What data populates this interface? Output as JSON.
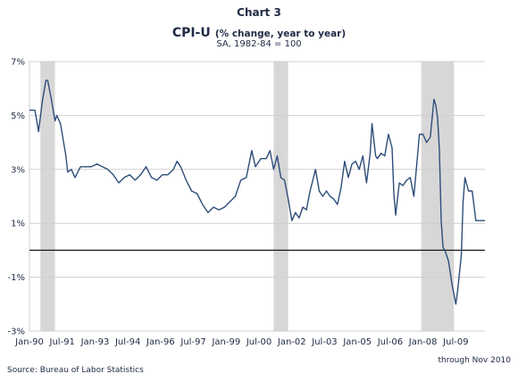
{
  "header": {
    "chart_number": "Chart 3",
    "title_main": "CPI-U",
    "title_sub": "(% change, year to year)",
    "subtitle": "SA, 1982-84 = 100"
  },
  "footer": {
    "source": "Source: Bureau of Labor Statistics",
    "through": "through Nov 2010"
  },
  "colors": {
    "line": "#2e4d7a",
    "shade": "#d7d7d7",
    "grid": "#cfcfcf",
    "zero": "#1a1a1a"
  },
  "chart_data": {
    "type": "line",
    "xlabel": "",
    "ylabel": "",
    "x_start": "Jan-90",
    "x_end": "Nov-10",
    "x_ticks": [
      {
        "label": "Jan-90",
        "month_index": 0
      },
      {
        "label": "Jul-91",
        "month_index": 18
      },
      {
        "label": "Jan-93",
        "month_index": 36
      },
      {
        "label": "Jul-94",
        "month_index": 54
      },
      {
        "label": "Jan-96",
        "month_index": 72
      },
      {
        "label": "Jul-97",
        "month_index": 90
      },
      {
        "label": "Jan-99",
        "month_index": 108
      },
      {
        "label": "Jul-00",
        "month_index": 126
      },
      {
        "label": "Jan-02",
        "month_index": 144
      },
      {
        "label": "Jul-03",
        "month_index": 162
      },
      {
        "label": "Jan-05",
        "month_index": 180
      },
      {
        "label": "Jul-06",
        "month_index": 198
      },
      {
        "label": "Jan-08",
        "month_index": 216
      },
      {
        "label": "Jul-09",
        "month_index": 234
      }
    ],
    "ylim": [
      -3,
      7
    ],
    "y_ticks": [
      {
        "label": "7%",
        "value": 7
      },
      {
        "label": "5%",
        "value": 5
      },
      {
        "label": "3%",
        "value": 3
      },
      {
        "label": "1%",
        "value": 1
      },
      {
        "label": "-1%",
        "value": -1
      },
      {
        "label": "-3%",
        "value": -3
      }
    ],
    "grid": "horizontal",
    "recession_shading": [
      {
        "start": "Jul-90",
        "end": "Mar-91"
      },
      {
        "start": "Mar-01",
        "end": "Nov-01"
      },
      {
        "start": "Dec-07",
        "end": "Jun-09"
      }
    ],
    "series": [
      {
        "points": [
          [
            "Jan-90",
            5.2
          ],
          [
            "Apr-90",
            5.2
          ],
          [
            "Jun-90",
            4.4
          ],
          [
            "Aug-90",
            5.5
          ],
          [
            "Oct-90",
            6.3
          ],
          [
            "Nov-90",
            6.3
          ],
          [
            "Jan-91",
            5.6
          ],
          [
            "Mar-91",
            4.8
          ],
          [
            "Apr-91",
            5.0
          ],
          [
            "Jun-91",
            4.7
          ],
          [
            "Sep-91",
            3.5
          ],
          [
            "Oct-91",
            2.9
          ],
          [
            "Dec-91",
            3.0
          ],
          [
            "Feb-92",
            2.7
          ],
          [
            "May-92",
            3.1
          ],
          [
            "Aug-92",
            3.1
          ],
          [
            "Nov-92",
            3.1
          ],
          [
            "Feb-93",
            3.2
          ],
          [
            "May-93",
            3.1
          ],
          [
            "Aug-93",
            3.0
          ],
          [
            "Nov-93",
            2.8
          ],
          [
            "Feb-94",
            2.5
          ],
          [
            "May-94",
            2.7
          ],
          [
            "Aug-94",
            2.8
          ],
          [
            "Nov-94",
            2.6
          ],
          [
            "Feb-95",
            2.8
          ],
          [
            "May-95",
            3.1
          ],
          [
            "Aug-95",
            2.7
          ],
          [
            "Nov-95",
            2.6
          ],
          [
            "Feb-96",
            2.8
          ],
          [
            "May-96",
            2.8
          ],
          [
            "Aug-96",
            3.0
          ],
          [
            "Oct-96",
            3.3
          ],
          [
            "Dec-96",
            3.1
          ],
          [
            "Mar-97",
            2.6
          ],
          [
            "Jun-97",
            2.2
          ],
          [
            "Sep-97",
            2.1
          ],
          [
            "Dec-97",
            1.7
          ],
          [
            "Mar-98",
            1.4
          ],
          [
            "Jun-98",
            1.6
          ],
          [
            "Sep-98",
            1.5
          ],
          [
            "Dec-98",
            1.6
          ],
          [
            "Mar-99",
            1.8
          ],
          [
            "Jun-99",
            2.0
          ],
          [
            "Sep-99",
            2.6
          ],
          [
            "Dec-99",
            2.7
          ],
          [
            "Mar-00",
            3.7
          ],
          [
            "May-00",
            3.1
          ],
          [
            "Aug-00",
            3.4
          ],
          [
            "Nov-00",
            3.4
          ],
          [
            "Jan-01",
            3.7
          ],
          [
            "Mar-01",
            3.0
          ],
          [
            "May-01",
            3.5
          ],
          [
            "Jul-01",
            2.7
          ],
          [
            "Sep-01",
            2.6
          ],
          [
            "Nov-01",
            1.9
          ],
          [
            "Jan-02",
            1.1
          ],
          [
            "Mar-02",
            1.4
          ],
          [
            "May-02",
            1.2
          ],
          [
            "Jul-02",
            1.6
          ],
          [
            "Sep-02",
            1.5
          ],
          [
            "Nov-02",
            2.2
          ],
          [
            "Feb-03",
            3.0
          ],
          [
            "Apr-03",
            2.2
          ],
          [
            "Jun-03",
            2.0
          ],
          [
            "Aug-03",
            2.2
          ],
          [
            "Oct-03",
            2.0
          ],
          [
            "Dec-03",
            1.9
          ],
          [
            "Feb-04",
            1.7
          ],
          [
            "Apr-04",
            2.3
          ],
          [
            "Jun-04",
            3.3
          ],
          [
            "Aug-04",
            2.7
          ],
          [
            "Oct-04",
            3.2
          ],
          [
            "Dec-04",
            3.3
          ],
          [
            "Feb-05",
            3.0
          ],
          [
            "Apr-05",
            3.5
          ],
          [
            "Jun-05",
            2.5
          ],
          [
            "Aug-05",
            3.6
          ],
          [
            "Sep-05",
            4.7
          ],
          [
            "Nov-05",
            3.5
          ],
          [
            "Dec-05",
            3.4
          ],
          [
            "Feb-06",
            3.6
          ],
          [
            "Apr-06",
            3.5
          ],
          [
            "Jun-06",
            4.3
          ],
          [
            "Aug-06",
            3.8
          ],
          [
            "Sep-06",
            2.1
          ],
          [
            "Oct-06",
            1.3
          ],
          [
            "Dec-06",
            2.5
          ],
          [
            "Feb-07",
            2.4
          ],
          [
            "Apr-07",
            2.6
          ],
          [
            "Jun-07",
            2.7
          ],
          [
            "Aug-07",
            2.0
          ],
          [
            "Oct-07",
            3.5
          ],
          [
            "Nov-07",
            4.3
          ],
          [
            "Jan-08",
            4.3
          ],
          [
            "Mar-08",
            4.0
          ],
          [
            "May-08",
            4.2
          ],
          [
            "Jul-08",
            5.6
          ],
          [
            "Aug-08",
            5.4
          ],
          [
            "Sep-08",
            4.9
          ],
          [
            "Oct-08",
            3.7
          ],
          [
            "Nov-08",
            1.1
          ],
          [
            "Dec-08",
            0.1
          ],
          [
            "Jan-09",
            0.0
          ],
          [
            "Mar-09",
            -0.4
          ],
          [
            "May-09",
            -1.3
          ],
          [
            "Jul-09",
            -2.0
          ],
          [
            "Aug-09",
            -1.5
          ],
          [
            "Oct-09",
            -0.2
          ],
          [
            "Nov-09",
            1.8
          ],
          [
            "Dec-09",
            2.7
          ],
          [
            "Feb-10",
            2.2
          ],
          [
            "Apr-10",
            2.2
          ],
          [
            "Jun-10",
            1.1
          ],
          [
            "Aug-10",
            1.1
          ],
          [
            "Nov-10",
            1.1
          ]
        ]
      }
    ]
  }
}
